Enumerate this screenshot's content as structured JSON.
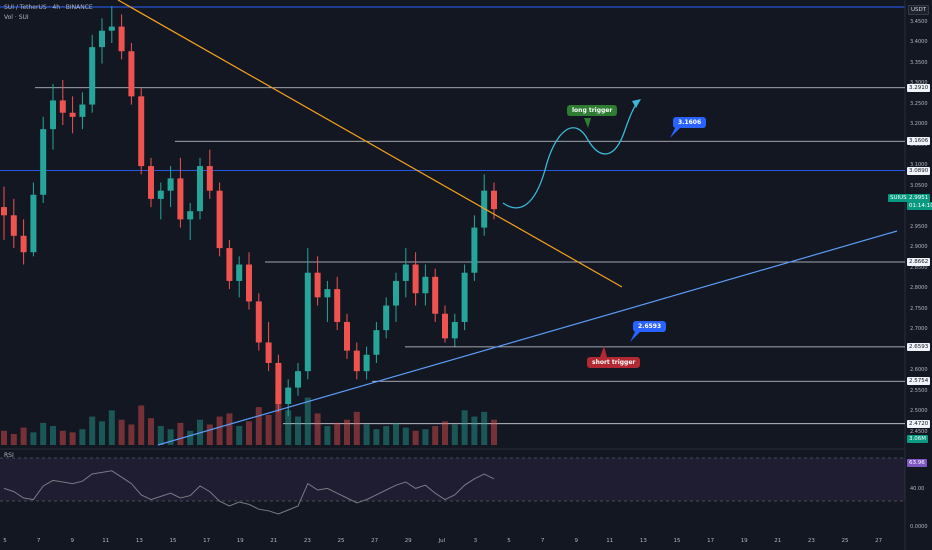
{
  "header": {
    "symbol_line": "SUI / TetherUS · 4h · BINANCE",
    "vol_line": "Vol · SUI",
    "rsi_label": "RSI",
    "currency": "USDT"
  },
  "price_axis": {
    "ticks": [
      "3.4500",
      "3.4000",
      "3.3500",
      "3.3000",
      "3.2500",
      "3.2000",
      "3.1500",
      "3.1000",
      "3.0500",
      "3.0000",
      "2.9500",
      "2.9000",
      "2.8500",
      "2.8000",
      "2.7500",
      "2.7000",
      "2.6500",
      "2.6000",
      "2.5500",
      "2.5000",
      "2.4500"
    ],
    "level_labels": [
      "3.2910",
      "3.1606",
      "3.0890",
      "2.8662",
      "2.6593",
      "2.5754",
      "2.4720"
    ],
    "current_symbol": "SUIUSDT",
    "current_price": "2.9951",
    "countdown": "01:14:10",
    "volume_label": "3.06M"
  },
  "rsi_axis": {
    "value": "63.96",
    "ticks": [
      "40.00",
      "0.0000"
    ]
  },
  "time_axis": [
    "5",
    "7",
    "9",
    "11",
    "13",
    "15",
    "17",
    "19",
    "21",
    "23",
    "25",
    "27",
    "29",
    "Jul",
    "3",
    "5",
    "7",
    "9",
    "11",
    "13",
    "15",
    "17",
    "19",
    "21",
    "23",
    "25",
    "27"
  ],
  "annotations": {
    "long_trigger": "long trigger",
    "short_trigger": "short trigger",
    "upper_target": "3.1606",
    "lower_target": "2.6593"
  },
  "colors": {
    "background": "#131722",
    "up": "#26a69a",
    "down": "#ef5350",
    "blue_line": "#2962ff",
    "orange_line": "#f7a21b",
    "trend_line": "#5b9cf6",
    "projection": "#3bb8d6",
    "long_badge": "#2e7d32",
    "short_badge": "#b22833",
    "rsi_line": "#787b86",
    "rsi_band": "#7e57c2"
  },
  "chart_data": {
    "type": "candlestick",
    "title": "SUI / TetherUS · 4h · BINANCE",
    "y_range": [
      2.42,
      3.5
    ],
    "horizontal_levels": [
      3.291,
      3.1606,
      3.089,
      2.8662,
      2.6593,
      2.5754,
      2.472
    ],
    "x_range": [
      "5",
      "27"
    ],
    "candles": [
      {
        "o": 3.0,
        "h": 3.05,
        "l": 2.92,
        "c": 2.98
      },
      {
        "o": 2.98,
        "h": 3.02,
        "l": 2.9,
        "c": 2.93
      },
      {
        "o": 2.93,
        "h": 2.97,
        "l": 2.86,
        "c": 2.89
      },
      {
        "o": 2.89,
        "h": 3.06,
        "l": 2.88,
        "c": 3.03
      },
      {
        "o": 3.03,
        "h": 3.22,
        "l": 3.01,
        "c": 3.19
      },
      {
        "o": 3.19,
        "h": 3.3,
        "l": 3.14,
        "c": 3.26
      },
      {
        "o": 3.26,
        "h": 3.31,
        "l": 3.2,
        "c": 3.23
      },
      {
        "o": 3.23,
        "h": 3.27,
        "l": 3.18,
        "c": 3.22
      },
      {
        "o": 3.22,
        "h": 3.28,
        "l": 3.19,
        "c": 3.25
      },
      {
        "o": 3.25,
        "h": 3.42,
        "l": 3.23,
        "c": 3.39
      },
      {
        "o": 3.39,
        "h": 3.46,
        "l": 3.35,
        "c": 3.43
      },
      {
        "o": 3.43,
        "h": 3.49,
        "l": 3.4,
        "c": 3.44
      },
      {
        "o": 3.44,
        "h": 3.47,
        "l": 3.36,
        "c": 3.38
      },
      {
        "o": 3.38,
        "h": 3.4,
        "l": 3.25,
        "c": 3.27
      },
      {
        "o": 3.27,
        "h": 3.29,
        "l": 3.08,
        "c": 3.1
      },
      {
        "o": 3.1,
        "h": 3.12,
        "l": 3.0,
        "c": 3.02
      },
      {
        "o": 3.02,
        "h": 3.06,
        "l": 2.97,
        "c": 3.04
      },
      {
        "o": 3.04,
        "h": 3.1,
        "l": 3.0,
        "c": 3.07
      },
      {
        "o": 3.07,
        "h": 3.12,
        "l": 2.95,
        "c": 2.97
      },
      {
        "o": 2.97,
        "h": 3.01,
        "l": 2.92,
        "c": 2.99
      },
      {
        "o": 2.99,
        "h": 3.12,
        "l": 2.97,
        "c": 3.1
      },
      {
        "o": 3.1,
        "h": 3.14,
        "l": 3.02,
        "c": 3.04
      },
      {
        "o": 3.04,
        "h": 3.06,
        "l": 2.88,
        "c": 2.9
      },
      {
        "o": 2.9,
        "h": 2.92,
        "l": 2.8,
        "c": 2.82
      },
      {
        "o": 2.82,
        "h": 2.88,
        "l": 2.78,
        "c": 2.86
      },
      {
        "o": 2.86,
        "h": 2.89,
        "l": 2.75,
        "c": 2.77
      },
      {
        "o": 2.77,
        "h": 2.79,
        "l": 2.65,
        "c": 2.67
      },
      {
        "o": 2.67,
        "h": 2.72,
        "l": 2.6,
        "c": 2.62
      },
      {
        "o": 2.62,
        "h": 2.64,
        "l": 2.5,
        "c": 2.52
      },
      {
        "o": 2.52,
        "h": 2.58,
        "l": 2.49,
        "c": 2.56
      },
      {
        "o": 2.56,
        "h": 2.62,
        "l": 2.54,
        "c": 2.6
      },
      {
        "o": 2.6,
        "h": 2.9,
        "l": 2.58,
        "c": 2.84
      },
      {
        "o": 2.84,
        "h": 2.88,
        "l": 2.76,
        "c": 2.78
      },
      {
        "o": 2.78,
        "h": 2.82,
        "l": 2.72,
        "c": 2.8
      },
      {
        "o": 2.8,
        "h": 2.83,
        "l": 2.7,
        "c": 2.72
      },
      {
        "o": 2.72,
        "h": 2.74,
        "l": 2.63,
        "c": 2.65
      },
      {
        "o": 2.65,
        "h": 2.67,
        "l": 2.58,
        "c": 2.6
      },
      {
        "o": 2.6,
        "h": 2.66,
        "l": 2.58,
        "c": 2.64
      },
      {
        "o": 2.64,
        "h": 2.72,
        "l": 2.62,
        "c": 2.7
      },
      {
        "o": 2.7,
        "h": 2.78,
        "l": 2.68,
        "c": 2.76
      },
      {
        "o": 2.76,
        "h": 2.84,
        "l": 2.72,
        "c": 2.82
      },
      {
        "o": 2.82,
        "h": 2.9,
        "l": 2.78,
        "c": 2.86
      },
      {
        "o": 2.86,
        "h": 2.89,
        "l": 2.76,
        "c": 2.79
      },
      {
        "o": 2.79,
        "h": 2.86,
        "l": 2.76,
        "c": 2.83
      },
      {
        "o": 2.83,
        "h": 2.85,
        "l": 2.72,
        "c": 2.74
      },
      {
        "o": 2.74,
        "h": 2.76,
        "l": 2.67,
        "c": 2.68
      },
      {
        "o": 2.68,
        "h": 2.74,
        "l": 2.66,
        "c": 2.72
      },
      {
        "o": 2.72,
        "h": 2.86,
        "l": 2.7,
        "c": 2.84
      },
      {
        "o": 2.84,
        "h": 2.98,
        "l": 2.82,
        "c": 2.95
      },
      {
        "o": 2.95,
        "h": 3.08,
        "l": 2.93,
        "c": 3.04
      },
      {
        "o": 3.04,
        "h": 3.06,
        "l": 2.97,
        "c": 2.9951
      }
    ],
    "volume": [
      9,
      7,
      11,
      8,
      14,
      12,
      9,
      8,
      10,
      18,
      15,
      22,
      16,
      13,
      25,
      17,
      12,
      10,
      14,
      9,
      16,
      13,
      18,
      20,
      12,
      15,
      24,
      19,
      38,
      22,
      18,
      30,
      20,
      12,
      14,
      16,
      21,
      13,
      10,
      12,
      14,
      11,
      9,
      10,
      12,
      15,
      13,
      22,
      18,
      21,
      16
    ],
    "rsi": [
      52,
      48,
      40,
      38,
      55,
      62,
      60,
      58,
      61,
      70,
      72,
      74,
      66,
      58,
      44,
      38,
      42,
      46,
      40,
      43,
      55,
      48,
      36,
      30,
      35,
      32,
      26,
      24,
      20,
      25,
      30,
      58,
      50,
      52,
      46,
      40,
      34,
      38,
      44,
      50,
      56,
      60,
      52,
      56,
      46,
      38,
      44,
      56,
      64,
      70,
      63.96
    ]
  }
}
